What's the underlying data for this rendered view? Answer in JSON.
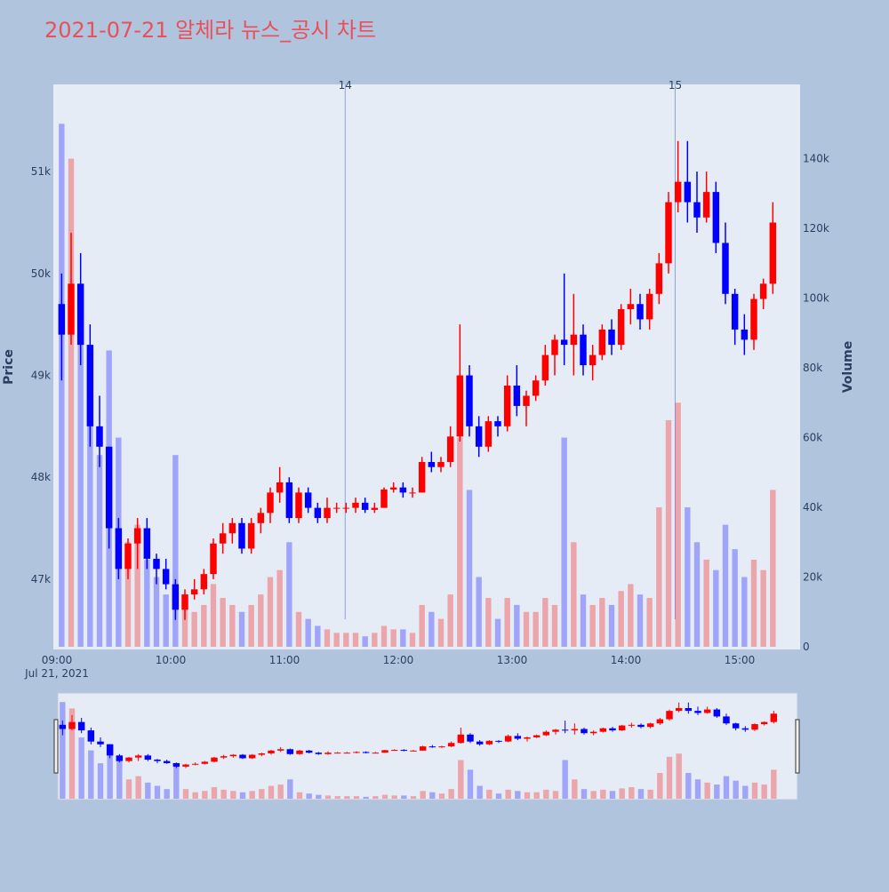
{
  "chart_data": {
    "type": "candlestick",
    "title": "2021-07-21 알체라 뉴스_공시 차트",
    "y_title": "Price",
    "y2_title": "Volume",
    "x_date_label": "Jul 21, 2021",
    "increasing_color": "#ff0000",
    "decreasing_color": "#0000ff",
    "xlim": [
      "09:00",
      "15:30"
    ],
    "xticks": [
      "09:00",
      "10:00",
      "11:00",
      "12:00",
      "13:00",
      "14:00",
      "15:00"
    ],
    "ylim": [
      46310,
      51856
    ],
    "yticks": [
      {
        "value": 47000,
        "label": "47k"
      },
      {
        "value": 48000,
        "label": "48k"
      },
      {
        "value": 49000,
        "label": "49k"
      },
      {
        "value": 50000,
        "label": "50k"
      },
      {
        "value": 51000,
        "label": "51k"
      }
    ],
    "y2lim": [
      0,
      161300
    ],
    "y2ticks": [
      0,
      {
        "value": 20000,
        "label": "20k"
      },
      {
        "value": 40000,
        "label": "40k"
      },
      {
        "value": 60000,
        "label": "60k"
      },
      {
        "value": 80000,
        "label": "80k"
      },
      {
        "value": 100000,
        "label": "100k"
      },
      {
        "value": 120000,
        "label": "120k"
      },
      {
        "value": 140000,
        "label": "140k"
      }
    ],
    "markers": [
      {
        "x": "11:32",
        "label": "14"
      },
      {
        "x": "14:26",
        "label": "15"
      }
    ],
    "x": [
      "09:00",
      "09:05",
      "09:10",
      "09:15",
      "09:20",
      "09:25",
      "09:30",
      "09:35",
      "09:40",
      "09:45",
      "09:50",
      "09:55",
      "10:00",
      "10:05",
      "10:10",
      "10:15",
      "10:20",
      "10:25",
      "10:30",
      "10:35",
      "10:40",
      "10:45",
      "10:50",
      "10:55",
      "11:00",
      "11:05",
      "11:10",
      "11:15",
      "11:20",
      "11:25",
      "11:30",
      "11:35",
      "11:40",
      "11:45",
      "11:50",
      "11:55",
      "12:00",
      "12:05",
      "12:10",
      "12:15",
      "12:20",
      "12:25",
      "12:30",
      "12:35",
      "12:40",
      "12:45",
      "12:50",
      "12:55",
      "13:00",
      "13:05",
      "13:10",
      "13:15",
      "13:20",
      "13:25",
      "13:30",
      "13:35",
      "13:40",
      "13:45",
      "13:50",
      "13:55",
      "14:00",
      "14:05",
      "14:10",
      "14:15",
      "14:20",
      "14:25",
      "14:30",
      "14:35",
      "14:40",
      "14:45",
      "14:50",
      "14:55",
      "15:00",
      "15:05",
      "15:10",
      "15:15"
    ],
    "open": [
      49700,
      49400,
      49900,
      49300,
      48500,
      48300,
      47500,
      47100,
      47350,
      47500,
      47200,
      47100,
      46950,
      46700,
      46850,
      46900,
      47050,
      47350,
      47450,
      47550,
      47300,
      47550,
      47650,
      47850,
      47950,
      47600,
      47850,
      47700,
      47600,
      47700,
      47700,
      47700,
      47750,
      47680,
      47700,
      47880,
      47900,
      47850,
      47850,
      48150,
      48100,
      48150,
      48400,
      49000,
      48500,
      48300,
      48550,
      48500,
      48900,
      48700,
      48800,
      48950,
      49200,
      49350,
      49300,
      49400,
      49100,
      49200,
      49450,
      49300,
      49650,
      49700,
      49550,
      49800,
      50100,
      50700,
      50900,
      50700,
      50550,
      50800,
      50300,
      49800,
      49450,
      49350,
      49750,
      49900
    ],
    "high": [
      50000,
      50400,
      50200,
      49500,
      48800,
      48300,
      47600,
      47400,
      47600,
      47600,
      47250,
      47200,
      47000,
      46900,
      47000,
      47100,
      47400,
      47550,
      47600,
      47600,
      47600,
      47700,
      47900,
      48100,
      48000,
      47900,
      47900,
      47750,
      47800,
      47750,
      47750,
      47800,
      47800,
      47750,
      47900,
      47950,
      47950,
      47900,
      48200,
      48250,
      48200,
      48500,
      49500,
      49100,
      48600,
      48600,
      48600,
      49000,
      49100,
      48850,
      49000,
      49300,
      49400,
      50000,
      49800,
      49500,
      49300,
      49500,
      49550,
      49700,
      49850,
      49800,
      49850,
      50200,
      50800,
      51300,
      51300,
      51000,
      51000,
      50900,
      50500,
      49850,
      49600,
      49800,
      49950,
      50700
    ],
    "low": [
      48950,
      49300,
      49100,
      48300,
      48100,
      47300,
      47000,
      47000,
      47100,
      47100,
      46950,
      46900,
      46600,
      46600,
      46800,
      46850,
      47000,
      47250,
      47350,
      47250,
      47250,
      47450,
      47550,
      47750,
      47550,
      47550,
      47650,
      47550,
      47550,
      47650,
      47650,
      47650,
      47650,
      47650,
      47700,
      47850,
      47800,
      47800,
      47850,
      48050,
      48050,
      48100,
      48350,
      48400,
      48200,
      48250,
      48400,
      48450,
      48600,
      48500,
      48750,
      48900,
      49000,
      49100,
      49000,
      49000,
      48950,
      49150,
      49200,
      49250,
      49500,
      49450,
      49450,
      49700,
      50000,
      50600,
      50500,
      50400,
      50500,
      50200,
      49700,
      49300,
      49200,
      49250,
      49650,
      49800
    ],
    "close": [
      49400,
      49900,
      49300,
      48500,
      48300,
      47500,
      47100,
      47350,
      47500,
      47200,
      47100,
      46950,
      46700,
      46850,
      46900,
      47050,
      47350,
      47450,
      47550,
      47300,
      47550,
      47650,
      47850,
      47950,
      47600,
      47850,
      47700,
      47600,
      47700,
      47700,
      47700,
      47750,
      47680,
      47700,
      47880,
      47900,
      47850,
      47850,
      48150,
      48100,
      48150,
      48400,
      49000,
      48500,
      48300,
      48550,
      48500,
      48900,
      48700,
      48800,
      48950,
      49200,
      49350,
      49300,
      49400,
      49100,
      49200,
      49450,
      49300,
      49650,
      49700,
      49550,
      49800,
      50100,
      50700,
      50900,
      50700,
      50550,
      50800,
      50300,
      49800,
      49450,
      49350,
      49750,
      49900,
      50500
    ],
    "volume": [
      150000,
      140000,
      95000,
      75000,
      55000,
      85000,
      60000,
      30000,
      35000,
      25000,
      20000,
      15000,
      55000,
      15000,
      10000,
      12000,
      18000,
      14000,
      12000,
      10000,
      12000,
      15000,
      20000,
      22000,
      30000,
      10000,
      8000,
      6000,
      5000,
      4000,
      4000,
      4000,
      3000,
      4000,
      6000,
      5000,
      5000,
      4000,
      12000,
      10000,
      8000,
      15000,
      60000,
      45000,
      20000,
      14000,
      8000,
      14000,
      12000,
      10000,
      10000,
      14000,
      12000,
      60000,
      30000,
      15000,
      12000,
      14000,
      12000,
      16000,
      18000,
      15000,
      14000,
      40000,
      65000,
      70000,
      40000,
      30000,
      25000,
      22000,
      35000,
      28000,
      20000,
      25000,
      22000,
      45000
    ]
  }
}
